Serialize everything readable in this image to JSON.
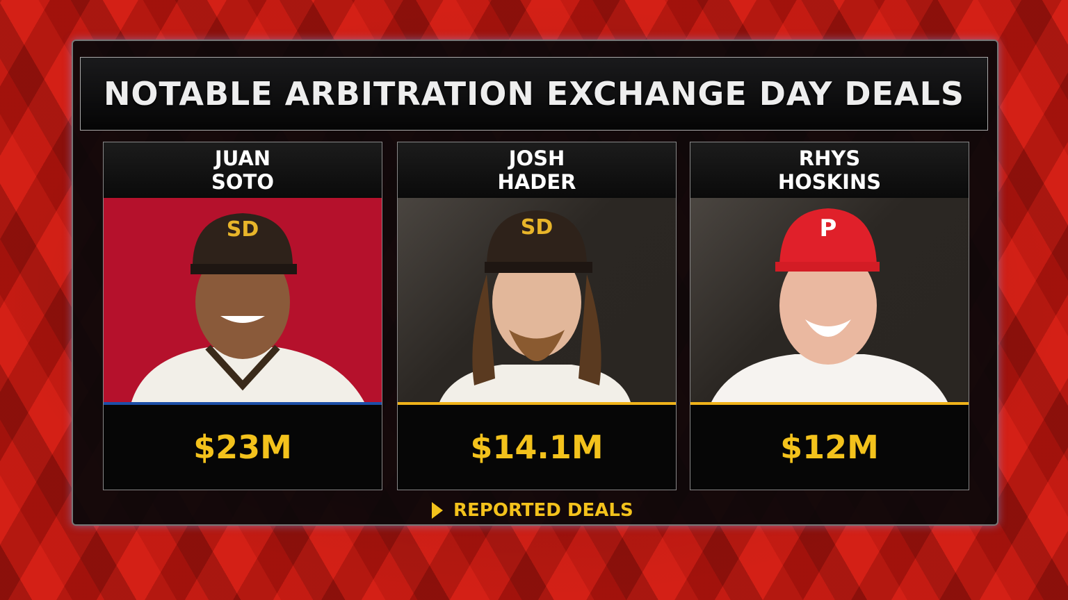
{
  "title": "NOTABLE ARBITRATION EXCHANGE DAY DEALS",
  "cards": [
    {
      "first_name": "JUAN",
      "last_name": "SOTO",
      "amount": "$23M"
    },
    {
      "first_name": "JOSH",
      "last_name": "HADER",
      "amount": "$14.1M"
    },
    {
      "first_name": "RHYS",
      "last_name": "HOSKINS",
      "amount": "$12M"
    }
  ],
  "footer": "REPORTED DEALS"
}
